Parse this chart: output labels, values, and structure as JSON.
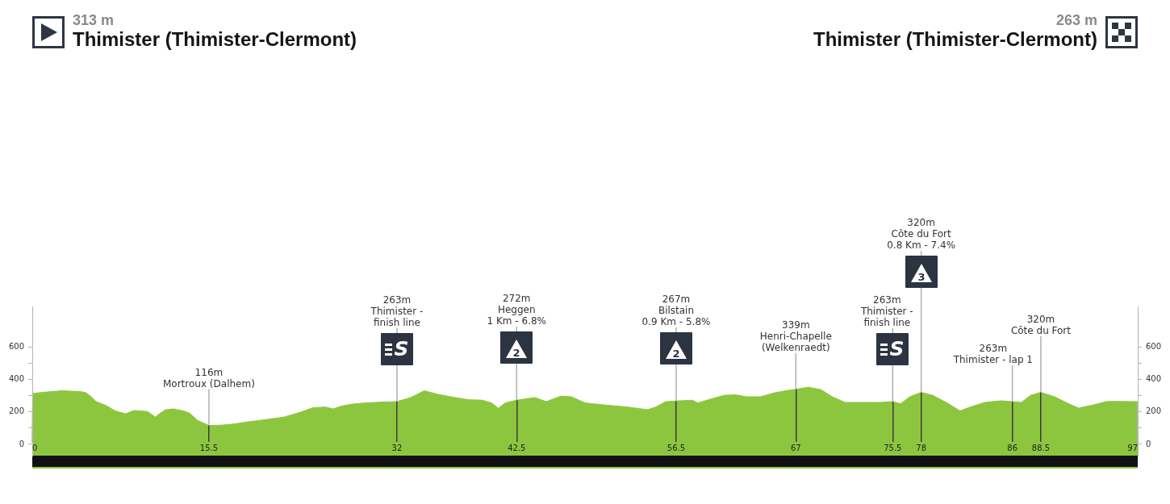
{
  "chart_data": {
    "type": "area",
    "x": [
      0,
      0.9,
      2.6,
      4.2,
      4.7,
      5.1,
      5.6,
      6.5,
      7.3,
      8.2,
      8.9,
      10.1,
      10.8,
      11.2,
      11.7,
      12.4,
      13.3,
      13.8,
      14.5,
      15.5,
      16.6,
      17.7,
      18.9,
      20.5,
      22.1,
      23.5,
      24.6,
      25.7,
      26.4,
      27.1,
      28,
      29.2,
      30.6,
      32,
      33.2,
      34.4,
      35.6,
      37.1,
      38.3,
      39.5,
      40.3,
      40.9,
      41.5,
      42.5,
      44.1,
      45.1,
      46.4,
      47.3,
      48.5,
      50.3,
      52.2,
      54,
      54.7,
      55.6,
      56.5,
      57.9,
      58.4,
      59.6,
      60.7,
      61.7,
      62.7,
      63.9,
      65.1,
      66.1,
      67,
      68.1,
      69.2,
      70.2,
      71.3,
      72.8,
      74.4,
      75.5,
      76.2,
      77,
      78,
      79,
      80.2,
      81.4,
      82.4,
      83.6,
      85,
      86,
      86.8,
      87.6,
      88.5,
      89.7,
      90.7,
      91.8,
      93,
      94.3,
      95.6,
      97
    ],
    "series": [
      {
        "color": "#8cc63f",
        "values": [
          313,
          320,
          330,
          325,
          318,
          297,
          263,
          238,
          205,
          188,
          208,
          202,
          168,
          190,
          213,
          218,
          205,
          192,
          147,
          116,
          118,
          125,
          138,
          152,
          168,
          197,
          225,
          230,
          218,
          235,
          247,
          255,
          260,
          263,
          288,
          330,
          308,
          288,
          275,
          272,
          255,
          222,
          255,
          272,
          288,
          263,
          297,
          293,
          255,
          242,
          230,
          213,
          230,
          263,
          267,
          272,
          255,
          280,
          302,
          305,
          293,
          293,
          317,
          330,
          339,
          352,
          337,
          293,
          258,
          258,
          258,
          263,
          250,
          293,
          320,
          302,
          258,
          206,
          232,
          258,
          268,
          263,
          258,
          302,
          320,
          293,
          258,
          223,
          241,
          264,
          264,
          263
        ]
      }
    ],
    "xlim": [
      0,
      97
    ],
    "xticks": [
      0,
      15.5,
      32,
      42.5,
      56.5,
      67,
      75.5,
      78,
      86,
      88.5,
      97
    ],
    "ylim": [
      -70,
      850
    ],
    "yticks": [
      0,
      {
        "value": 100,
        "label": null
      },
      200,
      {
        "value": 300,
        "label": null
      },
      400,
      {
        "value": 500,
        "label": null
      },
      600
    ],
    "y2lim": [
      -70,
      850
    ],
    "y2ticks": [
      0,
      {
        "value": 100,
        "label": null
      },
      200,
      {
        "value": 300,
        "label": null
      },
      400,
      {
        "value": 500,
        "label": null
      },
      600
    ],
    "grid": "x",
    "annotations": [
      "313 m\nThimister (Thimister-Clermont)",
      "263 m\nThimister (Thimister-Clermont)",
      {
        "text": "116m\nMortroux (Dalhem)",
        "x": 15.5,
        "y": 116
      },
      {
        "text": "263m\nThimister -\nfinish line",
        "x": 32,
        "y": 263
      },
      "S",
      {
        "text": "272m\nHeggen\n1 Km - 6.8%",
        "x": 42.5,
        "y": 272
      },
      "2",
      {
        "text": "267m\nBilstain\n0.9 Km - 5.8%",
        "x": 56.5,
        "y": 267
      },
      "2",
      {
        "text": "339m\nHenri-Chapelle\n(Welkenraedt)",
        "x": 67,
        "y": 339
      },
      {
        "text": "263m\nThimister -\nfinish line",
        "x": 75.5,
        "y": 263
      },
      "S",
      {
        "text": "320m\nCôte du Fort\n0.8 Km - 7.4%",
        "x": 78,
        "y": 320
      },
      "3",
      {
        "text": "263m\nThimister - lap 1",
        "x": 86,
        "y": 263
      },
      {
        "text": "320m\nCôte du Fort",
        "x": 88.5,
        "y": 320
      }
    ]
  }
}
